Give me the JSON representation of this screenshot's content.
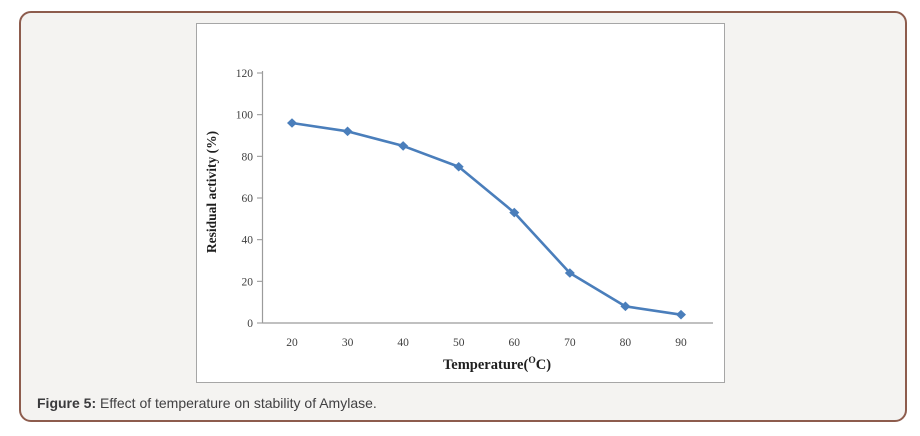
{
  "figure": {
    "caption_label": "Figure 5:",
    "caption_text": "Effect of temperature on stability of Amylase."
  },
  "chart_data": {
    "type": "line",
    "title": "",
    "xlabel": "Temperature(°C)",
    "xlabel_render": {
      "pre": "Temperature(",
      "sup": "O",
      "post": "C)"
    },
    "ylabel": "Residual activity (%)",
    "x": [
      20,
      30,
      40,
      50,
      60,
      70,
      80,
      90
    ],
    "categories": [
      "20",
      "30",
      "40",
      "50",
      "60",
      "70",
      "80",
      "90"
    ],
    "series": [
      {
        "name": "Residual activity",
        "values": [
          96,
          92,
          85,
          75,
          53,
          24,
          8,
          4
        ]
      }
    ],
    "ylim": [
      0,
      120
    ],
    "yticks": [
      0,
      20,
      40,
      60,
      80,
      100,
      120
    ],
    "grid": false,
    "legend_position": "none",
    "marker": "diamond",
    "line_color": "#4a7ebb"
  },
  "style_colors": {
    "panel_border": "#8d5c4d",
    "panel_background": "#f4f3f1",
    "chart_border": "#a6a6a6",
    "chart_background": "#ffffff",
    "axis_line": "#9b9b9b",
    "tick_label": "#3f3f3f",
    "axis_title": "#1f1f1f",
    "caption": "#414042"
  }
}
